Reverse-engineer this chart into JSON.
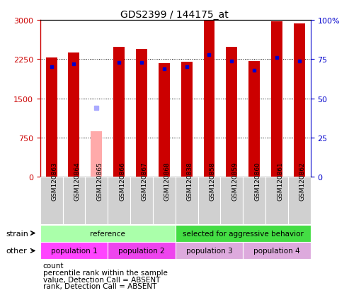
{
  "title": "GDS2399 / 144175_at",
  "samples": [
    "GSM120863",
    "GSM120864",
    "GSM120865",
    "GSM120866",
    "GSM120867",
    "GSM120868",
    "GSM120838",
    "GSM120858",
    "GSM120859",
    "GSM120860",
    "GSM120861",
    "GSM120862"
  ],
  "counts": [
    2280,
    2380,
    870,
    2480,
    2450,
    2175,
    2200,
    3010,
    2490,
    2220,
    2975,
    2930
  ],
  "percentile_ranks": [
    70,
    72,
    44,
    73,
    73,
    69,
    70,
    78,
    74,
    68,
    76,
    74
  ],
  "absent": [
    2
  ],
  "count_color": "#cc0000",
  "absent_count_color": "#ffaaaa",
  "rank_color": "#0000cc",
  "absent_rank_color": "#aaaaff",
  "ylim_left": [
    0,
    3000
  ],
  "ylim_right": [
    0,
    100
  ],
  "yticks_left": [
    0,
    750,
    1500,
    2250,
    3000
  ],
  "yticks_right": [
    0,
    25,
    50,
    75,
    100
  ],
  "strain_groups": [
    {
      "label": "reference",
      "start": 0,
      "end": 6,
      "color": "#aaffaa"
    },
    {
      "label": "selected for aggressive behavior",
      "start": 6,
      "end": 12,
      "color": "#44dd44"
    }
  ],
  "other_groups": [
    {
      "label": "population 1",
      "start": 0,
      "end": 3,
      "color": "#ff44ff"
    },
    {
      "label": "population 2",
      "start": 3,
      "end": 6,
      "color": "#ee44ee"
    },
    {
      "label": "population 3",
      "start": 6,
      "end": 9,
      "color": "#ddaadd"
    },
    {
      "label": "population 4",
      "start": 9,
      "end": 12,
      "color": "#ddaadd"
    }
  ],
  "legend_items": [
    {
      "label": "count",
      "color": "#cc0000"
    },
    {
      "label": "percentile rank within the sample",
      "color": "#0000cc"
    },
    {
      "label": "value, Detection Call = ABSENT",
      "color": "#ffaaaa"
    },
    {
      "label": "rank, Detection Call = ABSENT",
      "color": "#aaaaff"
    }
  ],
  "bar_width": 0.5,
  "background_color": "#ffffff",
  "tick_color_left": "#cc0000",
  "tick_color_right": "#0000cc",
  "grid_yticks": [
    750,
    1500,
    2250
  ]
}
